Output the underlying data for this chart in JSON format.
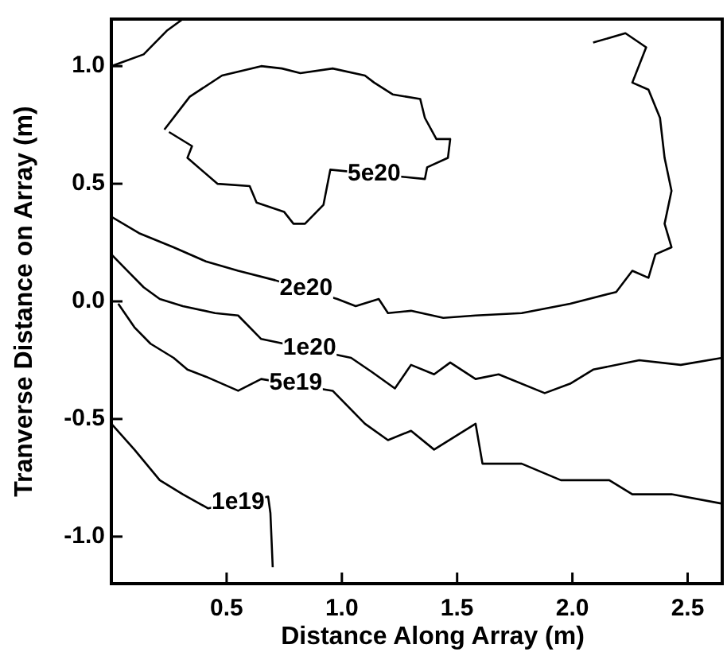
{
  "chart_data": {
    "type": "line",
    "xlabel": "Distance Along Array (m)",
    "ylabel": "Tranverse Distance on Array (m)",
    "xlim": [
      0,
      2.65
    ],
    "ylim": [
      -1.2,
      1.2
    ],
    "xticks": [
      0.5,
      {
        "value": 1,
        "label": "1.0"
      },
      1.5,
      {
        "value": 2,
        "label": "2.0"
      },
      2.5
    ],
    "yticks": [
      {
        "value": -1,
        "label": "-1.0"
      },
      -0.5,
      {
        "value": 0,
        "label": "0.0"
      },
      0.5,
      {
        "value": 1,
        "label": "1.0"
      }
    ],
    "grid": false,
    "marker": "none",
    "line_style": "solid",
    "series": [
      {
        "color": "#000000",
        "x": [
          0.23,
          0.34,
          0.48,
          0.65,
          0.74,
          0.82,
          0.96,
          1.1,
          1.14,
          1.22,
          1.34,
          1.36,
          1.41,
          1.47,
          1.46,
          1.37,
          1.36,
          0.95,
          0.92,
          0.84,
          0.79,
          0.75,
          0.63,
          0.6,
          0.46,
          0.33,
          0.35,
          0.25
        ],
        "values": [
          0.73,
          0.87,
          0.96,
          1.0,
          0.99,
          0.97,
          0.99,
          0.96,
          0.93,
          0.88,
          0.86,
          0.78,
          0.69,
          0.69,
          0.61,
          0.57,
          0.52,
          0.56,
          0.41,
          0.33,
          0.33,
          0.38,
          0.42,
          0.49,
          0.5,
          0.61,
          0.66,
          0.72
        ]
      },
      {
        "color": "#000000",
        "x": [
          0,
          0.12,
          0.27,
          0.41,
          0.55,
          0.71,
          0.98,
          1.06,
          1.16,
          1.2,
          1.3,
          1.44,
          1.58,
          1.78,
          1.99,
          2.19,
          2.26,
          2.33,
          2.36,
          2.43,
          2.4,
          2.43,
          2.4,
          2.38,
          2.33,
          2.26,
          2.32,
          2.23,
          2.09
        ],
        "values": [
          0.36,
          0.29,
          0.23,
          0.17,
          0.13,
          0.09,
          0.01,
          -0.02,
          0.01,
          -0.05,
          -0.04,
          -0.07,
          -0.06,
          -0.05,
          -0.01,
          0.04,
          0.13,
          0.1,
          0.2,
          0.23,
          0.33,
          0.47,
          0.61,
          0.78,
          0.9,
          0.93,
          1.08,
          1.14,
          1.1
        ]
      },
      {
        "color": "#000000",
        "x": [
          0,
          0.14,
          0.24,
          0.31
        ],
        "values": [
          1.0,
          1.05,
          1.15,
          1.2
        ]
      },
      {
        "color": "#000000",
        "x": [
          0,
          0.07,
          0.14,
          0.21,
          0.31,
          0.45,
          0.55,
          0.65,
          1.04,
          1.13,
          1.23,
          1.3,
          1.4,
          1.47,
          1.58,
          1.68,
          1.88,
          1.99,
          2.09,
          2.29,
          2.47,
          2.65
        ],
        "values": [
          0.2,
          0.13,
          0.06,
          0.01,
          -0.02,
          -0.05,
          -0.06,
          -0.16,
          -0.24,
          -0.3,
          -0.37,
          -0.27,
          -0.31,
          -0.26,
          -0.33,
          -0.31,
          -0.39,
          -0.35,
          -0.29,
          -0.25,
          -0.27,
          -0.24
        ]
      },
      {
        "color": "#000000",
        "x": [
          0.03,
          0.1,
          0.17,
          0.27,
          0.33,
          0.41,
          0.55,
          0.65,
          0.96,
          1.1,
          1.2,
          1.3,
          1.4,
          1.58,
          1.61,
          1.78,
          1.95,
          2.16,
          2.26,
          2.43,
          2.65
        ],
        "values": [
          -0.01,
          -0.11,
          -0.18,
          -0.24,
          -0.29,
          -0.32,
          -0.38,
          -0.33,
          -0.38,
          -0.52,
          -0.59,
          -0.55,
          -0.63,
          -0.52,
          -0.69,
          -0.69,
          -0.76,
          -0.76,
          -0.82,
          -0.82,
          -0.86
        ]
      },
      {
        "color": "#000000",
        "x": [
          0,
          0.1,
          0.21,
          0.31,
          0.42,
          0.68,
          0.69,
          0.7
        ],
        "values": [
          -0.52,
          -0.63,
          -0.76,
          -0.82,
          -0.88,
          -0.83,
          -0.9,
          -1.13
        ]
      }
    ],
    "annotations": [
      {
        "text": "5e20",
        "x": 1.14,
        "y": 0.54
      },
      {
        "text": "2e20",
        "x": 0.845,
        "y": 0.055
      },
      {
        "text": "1e20",
        "x": 0.86,
        "y": -0.2
      },
      {
        "text": "5e19",
        "x": 0.8,
        "y": -0.35
      },
      {
        "text": "1e19",
        "x": 0.55,
        "y": -0.856
      }
    ]
  }
}
